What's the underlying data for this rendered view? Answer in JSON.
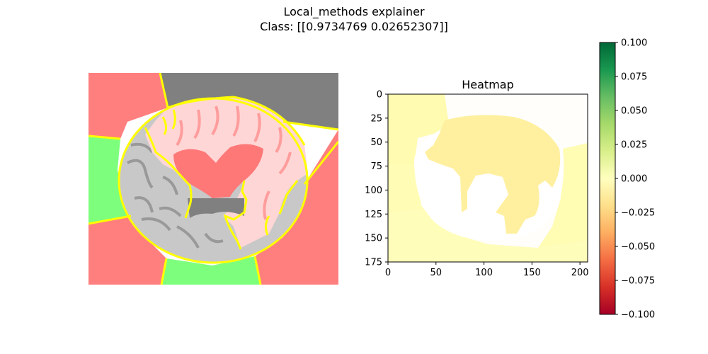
{
  "figure": {
    "title": "Local_methods explainer",
    "subtitle": "Class: [[0.9734769  0.02652307]]"
  },
  "chart_data": [
    {
      "type": "image",
      "panel": "lime-segmentation-overlay",
      "description_colors": {
        "positive_segment": "#7dff7d",
        "negative_segment": "#ff7d7d",
        "neutral_segment": "#808080",
        "boundary": "#ffff00"
      }
    },
    {
      "type": "heatmap",
      "title": "Heatmap",
      "xlim": [
        0,
        208
      ],
      "ylim": [
        175,
        0
      ],
      "xticks": [
        "0",
        "50",
        "100",
        "150",
        "200"
      ],
      "yticks": [
        "0",
        "25",
        "50",
        "75",
        "100",
        "125",
        "150",
        "175"
      ],
      "cmap": "RdYlGn",
      "regions": [
        {
          "name": "top-left",
          "value": 0.005
        },
        {
          "name": "top-right",
          "value": 0.001
        },
        {
          "name": "brain-foreground",
          "value": -0.01
        },
        {
          "name": "left-band",
          "value": 0.003
        },
        {
          "name": "bottom",
          "value": 0.004
        },
        {
          "name": "right-band",
          "value": 0.004
        }
      ],
      "colorbar": {
        "range": [
          -0.1,
          0.1
        ],
        "ticks": [
          "0.100",
          "0.075",
          "0.050",
          "0.025",
          "0.000",
          "−0.025",
          "−0.050",
          "−0.075",
          "−0.100"
        ],
        "tick_values": [
          0.1,
          0.075,
          0.05,
          0.025,
          0.0,
          -0.025,
          -0.05,
          -0.075,
          -0.1
        ]
      }
    }
  ]
}
